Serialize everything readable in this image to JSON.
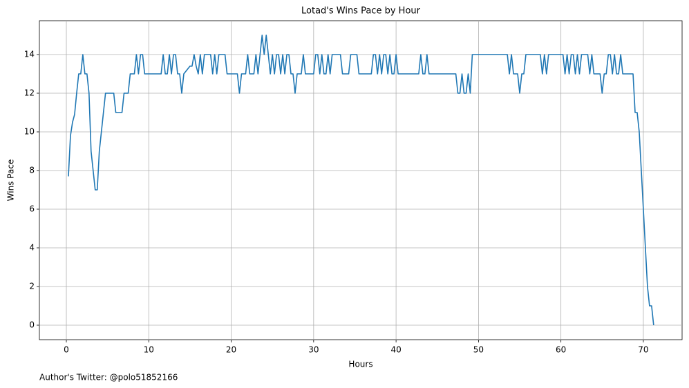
{
  "chart_data": {
    "type": "line",
    "title": "Lotad's Wins Pace by Hour",
    "xlabel": "Hours",
    "ylabel": "Wins Pace",
    "footer": "Author's Twitter: @polo51852166",
    "color": "#1f77b4",
    "grid": true,
    "xlim": [
      -3.27,
      74.7
    ],
    "ylim": [
      -0.75,
      15.75
    ],
    "xticks": [
      0,
      10,
      20,
      30,
      40,
      50,
      60,
      70
    ],
    "yticks": [
      0,
      2,
      4,
      6,
      8,
      10,
      12,
      14
    ],
    "x": [
      0.25,
      0.5,
      0.75,
      1,
      1.25,
      1.5,
      1.75,
      2,
      2.25,
      2.5,
      2.75,
      3,
      3.25,
      3.5,
      3.75,
      4,
      4.25,
      4.5,
      4.75,
      5,
      5.5,
      5.75,
      6,
      6.5,
      6.75,
      7,
      7.5,
      7.75,
      8.25,
      8.5,
      8.75,
      9,
      9.25,
      9.5,
      10,
      11.5,
      11.75,
      12,
      12.25,
      12.5,
      12.75,
      13,
      13.25,
      13.5,
      13.75,
      14,
      14.25,
      15,
      15.25,
      15.5,
      15.75,
      16,
      16.25,
      16.5,
      16.75,
      17.5,
      17.75,
      18,
      18.25,
      18.5,
      19.25,
      19.5,
      20.75,
      21,
      21.25,
      21.75,
      22,
      22.25,
      22.75,
      23,
      23.25,
      23.5,
      23.75,
      24,
      24.25,
      24.5,
      24.75,
      25,
      25.25,
      25.5,
      25.75,
      26,
      26.25,
      26.5,
      26.75,
      27,
      27.25,
      27.5,
      27.75,
      28,
      28.5,
      28.75,
      29,
      30,
      30.25,
      30.5,
      30.75,
      31,
      31.25,
      31.5,
      31.75,
      32,
      32.25,
      33.25,
      33.5,
      34.25,
      34.5,
      35.25,
      35.5,
      37,
      37.25,
      37.5,
      37.75,
      38,
      38.25,
      38.5,
      38.75,
      39,
      39.25,
      39.5,
      39.75,
      40,
      40.25,
      42.75,
      43,
      43.25,
      43.5,
      43.75,
      44,
      47.25,
      47.5,
      47.75,
      48,
      48.25,
      48.5,
      48.75,
      49,
      49.25,
      53.5,
      53.75,
      54,
      54.25,
      54.75,
      55,
      55.25,
      55.5,
      55.75,
      57.5,
      57.75,
      58,
      58.25,
      58.5,
      60.25,
      60.5,
      60.75,
      61,
      61.25,
      61.5,
      61.75,
      62,
      62.25,
      62.5,
      63.25,
      63.5,
      63.75,
      64,
      64.75,
      65,
      65.25,
      65.5,
      65.75,
      66,
      66.25,
      66.5,
      66.75,
      67,
      67.25,
      67.5,
      68.75,
      69,
      69.25,
      69.5,
      69.75,
      70,
      70.25,
      70.5,
      70.75,
      71,
      71.25
    ],
    "values": [
      7.7,
      9.8,
      10.5,
      10.9,
      12,
      13,
      13,
      14,
      13,
      13,
      12,
      9,
      8,
      7,
      7,
      9,
      10,
      11,
      12,
      12,
      12,
      12,
      11,
      11,
      11,
      12,
      12,
      13,
      13,
      14,
      13,
      14,
      14,
      13,
      13,
      13,
      14,
      13,
      13,
      14,
      13,
      14,
      14,
      13,
      13,
      12,
      13,
      13.4,
      13.4,
      14,
      13.4,
      13,
      14,
      13,
      14,
      14,
      13,
      14,
      13,
      14,
      14,
      13,
      13,
      12,
      13,
      13,
      14,
      13,
      13,
      14,
      13,
      14,
      15,
      14,
      15,
      14,
      13,
      14,
      13,
      14,
      14,
      13,
      14,
      13,
      14,
      14,
      13,
      13,
      12,
      13,
      13,
      14,
      13,
      13,
      14,
      14,
      13,
      14,
      13,
      13,
      14,
      13,
      14,
      14,
      13,
      13,
      14,
      14,
      13,
      13,
      14,
      14,
      13,
      14,
      13,
      14,
      14,
      13,
      14,
      13,
      13,
      14,
      13,
      13,
      14,
      13,
      13,
      14,
      13,
      13,
      12,
      12,
      13,
      12,
      12,
      13,
      12,
      14,
      14,
      13,
      14,
      13,
      13,
      12,
      13,
      13,
      14,
      14,
      13,
      14,
      13,
      14,
      14,
      13,
      14,
      13,
      14,
      14,
      13,
      14,
      13,
      14,
      14,
      13,
      14,
      13,
      13,
      12,
      13,
      13,
      14,
      14,
      13,
      14,
      13,
      13,
      14,
      13,
      13,
      11,
      11,
      10,
      8,
      6,
      4,
      2,
      1,
      1,
      0
    ]
  }
}
